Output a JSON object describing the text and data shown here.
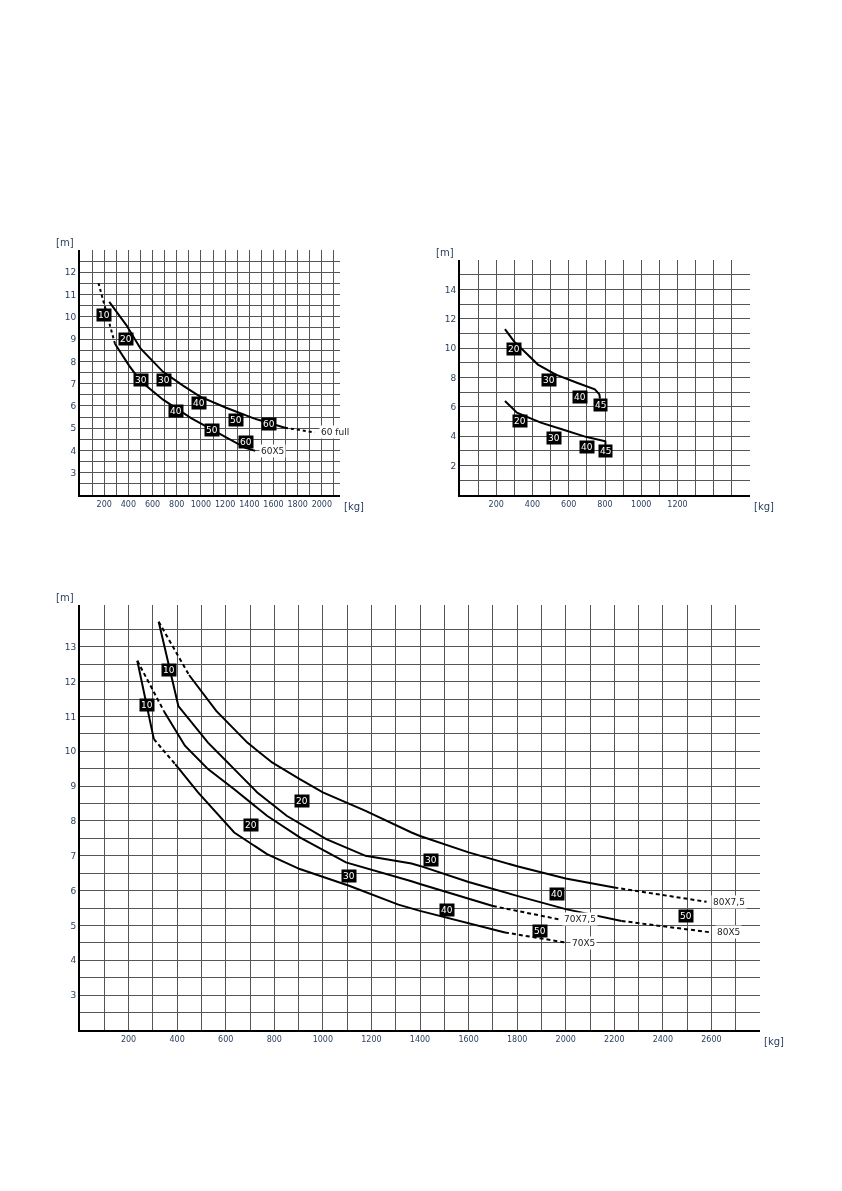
{
  "chart_data": [
    {
      "type": "line",
      "xlabel": "[kg]",
      "ylabel": "[m]",
      "grid": true,
      "xlim": [
        0,
        2150
      ],
      "ylim": [
        2,
        13
      ],
      "xticks": [
        {
          "value": 100,
          "label": null
        },
        200,
        {
          "value": 300,
          "label": null
        },
        400,
        {
          "value": 500,
          "label": null
        },
        600,
        {
          "value": 700,
          "label": null
        },
        800,
        {
          "value": 900,
          "label": null
        },
        1000,
        {
          "value": 1100,
          "label": null
        },
        1200,
        {
          "value": 1300,
          "label": null
        },
        1400,
        {
          "value": 1500,
          "label": null
        },
        1600,
        {
          "value": 1700,
          "label": null
        },
        1800,
        {
          "value": 1900,
          "label": null
        },
        2000,
        {
          "value": 2100,
          "label": null
        }
      ],
      "yticks": [
        {
          "value": 2.5,
          "label": null
        },
        3,
        {
          "value": 3.5,
          "label": null
        },
        4,
        {
          "value": 4.5,
          "label": null
        },
        5,
        {
          "value": 5.5,
          "label": null
        },
        6,
        {
          "value": 6.5,
          "label": null
        },
        7,
        {
          "value": 7.5,
          "label": null
        },
        8,
        {
          "value": 8.5,
          "label": null
        },
        9,
        {
          "value": 9.5,
          "label": null
        },
        10,
        {
          "value": 10.5,
          "label": null
        },
        11,
        {
          "value": 11.5,
          "label": null
        },
        12,
        {
          "value": 12.5,
          "label": null
        }
      ],
      "series": [
        {
          "color": "#000000",
          "line_style": "solid",
          "x": [
            242,
            383,
            500,
            687,
            852,
            993,
            1203,
            1437,
            1695
          ],
          "values": [
            10.67,
            9.63,
            8.58,
            7.53,
            6.91,
            6.42,
            5.93,
            5.44,
            5.02
          ]
        },
        {
          "name": "60 full",
          "color": "#000000",
          "line_style": "dotted",
          "x": [
            1695,
            1941
          ],
          "values": [
            5.02,
            4.81
          ]
        },
        {
          "color": "#000000",
          "line_style": "dotted",
          "x": [
            153,
            289
          ],
          "values": [
            11.51,
            8.79
          ]
        },
        {
          "name": "60X5",
          "color": "#000000",
          "line_style": "solid",
          "x": [
            289,
            406,
            500,
            687,
            922,
            1156,
            1367,
            1449
          ],
          "values": [
            8.79,
            7.81,
            7.12,
            6.28,
            5.44,
            4.74,
            4.12,
            3.98
          ]
        }
      ],
      "annotations": [
        {
          "text": "10",
          "x": 195,
          "y": 10.07
        },
        {
          "text": "20",
          "x": 378,
          "y": 9.0
        },
        {
          "text": "30",
          "x": 505,
          "y": 7.17
        },
        {
          "text": "30",
          "x": 692,
          "y": 7.17
        },
        {
          "text": "40",
          "x": 793,
          "y": 5.78
        },
        {
          "text": "40",
          "x": 987,
          "y": 6.14
        },
        {
          "text": "50",
          "x": 1093,
          "y": 4.93
        },
        {
          "text": "50",
          "x": 1290,
          "y": 5.39
        },
        {
          "text": "60",
          "x": 1372,
          "y": 4.38
        },
        {
          "text": "60",
          "x": 1566,
          "y": 5.2
        }
      ]
    },
    {
      "type": "line",
      "xlabel": "[kg]",
      "ylabel": "[m]",
      "grid": true,
      "xlim": [
        0,
        1600
      ],
      "ylim": [
        0,
        16
      ],
      "xticks": [
        {
          "value": 100,
          "label": null
        },
        200,
        {
          "value": 300,
          "label": null
        },
        400,
        {
          "value": 500,
          "label": null
        },
        600,
        {
          "value": 700,
          "label": null
        },
        800,
        {
          "value": 900,
          "label": null
        },
        1000,
        {
          "value": 1100,
          "label": null
        },
        1200,
        {
          "value": 1300,
          "label": null
        },
        {
          "value": 1400,
          "label": null
        },
        {
          "value": 1500,
          "label": null
        }
      ],
      "yticks": [
        {
          "value": 1,
          "label": null
        },
        2,
        {
          "value": 3,
          "label": null
        },
        4,
        {
          "value": 5,
          "label": null
        },
        6,
        {
          "value": 7,
          "label": null
        },
        8,
        {
          "value": 9,
          "label": null
        },
        10,
        {
          "value": 11,
          "label": null
        },
        12,
        {
          "value": 13,
          "label": null
        },
        14,
        {
          "value": 15,
          "label": null
        }
      ],
      "series": [
        {
          "color": "#000000",
          "line_style": "solid",
          "x": [
            248,
            298,
            430,
            529,
            645,
            744,
            769,
            772
          ],
          "values": [
            11.29,
            10.46,
            8.88,
            8.2,
            7.64,
            7.19,
            6.85,
            6.56
          ]
        },
        {
          "color": "#000000",
          "line_style": "solid",
          "x": [
            248,
            314,
            446,
            562,
            694,
            802,
            803
          ],
          "values": [
            6.4,
            5.61,
            4.93,
            4.48,
            3.96,
            3.65,
            3.35
          ]
        }
      ],
      "annotations": [
        {
          "text": "20",
          "x": 296,
          "y": 9.94
        },
        {
          "text": "30",
          "x": 490,
          "y": 7.82
        },
        {
          "text": "40",
          "x": 660,
          "y": 6.69
        },
        {
          "text": "45",
          "x": 775,
          "y": 6.15
        },
        {
          "text": "20",
          "x": 329,
          "y": 5.02
        },
        {
          "text": "30",
          "x": 521,
          "y": 3.87
        },
        {
          "text": "40",
          "x": 703,
          "y": 3.24
        },
        {
          "text": "45",
          "x": 804,
          "y": 2.99
        }
      ]
    },
    {
      "type": "line",
      "xlabel": "[kg]",
      "ylabel": "[m]",
      "grid": true,
      "xlim": [
        0,
        2800
      ],
      "ylim": [
        2,
        14.2
      ],
      "xticks": [
        {
          "value": 100,
          "label": null
        },
        200,
        {
          "value": 300,
          "label": null
        },
        400,
        {
          "value": 500,
          "label": null
        },
        600,
        {
          "value": 700,
          "label": null
        },
        800,
        {
          "value": 900,
          "label": null
        },
        1000,
        {
          "value": 1100,
          "label": null
        },
        1200,
        {
          "value": 1300,
          "label": null
        },
        1400,
        {
          "value": 1500,
          "label": null
        },
        1600,
        {
          "value": 1700,
          "label": null
        },
        1800,
        {
          "value": 1900,
          "label": null
        },
        2000,
        {
          "value": 2100,
          "label": null
        },
        2200,
        {
          "value": 2300,
          "label": null
        },
        2400,
        {
          "value": 2500,
          "label": null
        },
        2600,
        {
          "value": 2700,
          "label": null
        }
      ],
      "yticks": [
        {
          "value": 2.5,
          "label": null
        },
        3,
        {
          "value": 3.5,
          "label": null
        },
        4,
        {
          "value": 4.5,
          "label": null
        },
        5,
        {
          "value": 5.5,
          "label": null
        },
        6,
        {
          "value": 6.5,
          "label": null
        },
        7,
        {
          "value": 7.5,
          "label": null
        },
        8,
        {
          "value": 8.5,
          "label": null
        },
        9,
        {
          "value": 9.5,
          "label": null
        },
        10,
        {
          "value": 10.5,
          "label": null
        },
        11,
        {
          "value": 11.5,
          "label": null
        },
        12,
        {
          "value": 12.5,
          "label": null
        },
        13,
        {
          "value": 13.5,
          "label": null
        }
      ],
      "series": [
        {
          "color": "#000000",
          "line_style": "dashed",
          "x": [
            324,
            449
          ],
          "values": [
            13.72,
            12.19
          ]
        },
        {
          "color": "#000000",
          "line_style": "solid",
          "x": [
            449,
            561,
            689,
            791,
            905,
            1000,
            1176,
            1365,
            1400,
            1600,
            1800,
            2000,
            2200
          ],
          "values": [
            12.19,
            11.16,
            10.25,
            9.68,
            9.2,
            8.82,
            8.29,
            7.67,
            7.57,
            7.1,
            6.7,
            6.35,
            6.09
          ]
        },
        {
          "name": "80X7,5",
          "color": "#000000",
          "line_style": "dashed",
          "x": [
            2200,
            2580
          ],
          "values": [
            6.09,
            5.68
          ]
        },
        {
          "color": "#000000",
          "line_style": "solid",
          "x": [
            324,
            405,
            527,
            635,
            730,
            851,
            1014,
            1176,
            1365,
            1400,
            1600,
            1800,
            2000,
            2230
          ],
          "values": [
            13.72,
            11.3,
            10.25,
            9.49,
            8.82,
            8.15,
            7.48,
            7.0,
            6.78,
            6.71,
            6.25,
            5.85,
            5.47,
            5.13
          ]
        },
        {
          "name": "80X5",
          "color": "#000000",
          "line_style": "dashed",
          "x": [
            2230,
            2600
          ],
          "values": [
            5.13,
            4.8
          ]
        },
        {
          "color": "#000000",
          "line_style": "dashed",
          "x": [
            236,
            345
          ],
          "values": [
            12.6,
            11.16
          ]
        },
        {
          "color": "#000000",
          "line_style": "solid",
          "x": [
            345,
            432,
            527,
            635,
            770,
            905,
            1095,
            1365,
            1400,
            1700
          ],
          "values": [
            11.16,
            10.16,
            9.49,
            8.91,
            8.15,
            7.53,
            6.81,
            6.27,
            6.19,
            5.56
          ]
        },
        {
          "name": "70X7,5",
          "color": "#000000",
          "line_style": "dashed",
          "x": [
            1700,
            1970
          ],
          "values": [
            5.56,
            5.18
          ]
        },
        {
          "color": "#000000",
          "line_style": "solid",
          "x": [
            236,
            304
          ],
          "values": [
            12.6,
            10.35
          ]
        },
        {
          "color": "#000000",
          "line_style": "dashed",
          "x": [
            304,
            392
          ],
          "values": [
            10.35,
            9.63
          ]
        },
        {
          "color": "#000000",
          "line_style": "solid",
          "x": [
            392,
            486,
            635,
            770,
            905,
            1108,
            1311,
            1400,
            1750
          ],
          "values": [
            9.63,
            8.82,
            7.67,
            7.05,
            6.62,
            6.14,
            5.6,
            5.42,
            4.8
          ]
        },
        {
          "name": "70X5",
          "color": "#000000",
          "line_style": "dashed",
          "x": [
            1750,
            2000
          ],
          "values": [
            4.8,
            4.51
          ]
        }
      ],
      "annotations": [
        {
          "text": "10",
          "x": 365,
          "y": 12.34
        },
        {
          "text": "10",
          "x": 277,
          "y": 11.33
        },
        {
          "text": "20",
          "x": 916,
          "y": 8.58
        },
        {
          "text": "20",
          "x": 705,
          "y": 7.88
        },
        {
          "text": "30",
          "x": 1108,
          "y": 6.43
        },
        {
          "text": "30",
          "x": 1447,
          "y": 6.89
        },
        {
          "text": "40",
          "x": 1964,
          "y": 5.91
        },
        {
          "text": "40",
          "x": 1511,
          "y": 5.44
        },
        {
          "text": "50",
          "x": 1896,
          "y": 4.85
        },
        {
          "text": "50",
          "x": 2496,
          "y": 5.28
        }
      ]
    }
  ]
}
